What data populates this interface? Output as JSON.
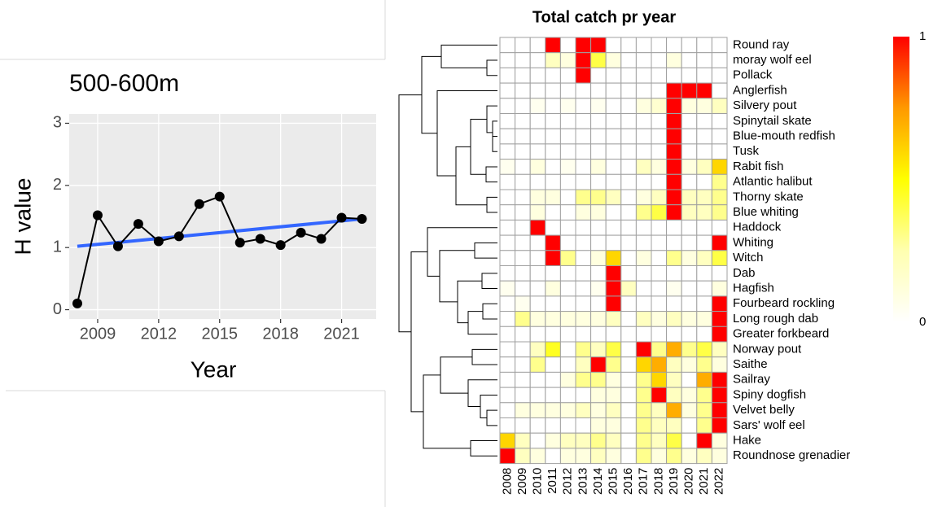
{
  "chart_data": [
    {
      "type": "line",
      "title": "500-600m",
      "x_label": "Year",
      "y_label": "H value",
      "x": [
        2008,
        2009,
        2010,
        2011,
        2012,
        2013,
        2014,
        2015,
        2016,
        2017,
        2018,
        2019,
        2020,
        2021,
        2022
      ],
      "series": [
        {
          "color": "#000000",
          "values": [
            0.1,
            1.52,
            1.02,
            1.38,
            1.1,
            1.18,
            1.7,
            1.82,
            1.08,
            1.14,
            1.04,
            1.24,
            1.14,
            1.48,
            1.46
          ]
        }
      ],
      "trend": {
        "color": "#3366ff",
        "x": [
          2008,
          2022
        ],
        "values": [
          1.02,
          1.46
        ]
      },
      "xlim": [
        2007.6,
        2022.7
      ],
      "ylim": [
        -0.15,
        3.15
      ],
      "xticks": [
        2009,
        2012,
        2015,
        2018,
        2021
      ],
      "yticks": [
        0,
        1,
        2,
        3
      ],
      "grid": true,
      "background": "#ebebeb"
    },
    {
      "type": "heatmap",
      "title": "Total catch pr year",
      "x": [
        2008,
        2009,
        2010,
        2011,
        2012,
        2013,
        2014,
        2015,
        2016,
        2017,
        2018,
        2019,
        2020,
        2021,
        2022
      ],
      "y": [
        "Round ray",
        "moray wolf eel",
        "Pollack",
        "Anglerfish",
        "Silvery pout",
        "Spinytail skate",
        "Blue-mouth redfish",
        "Tusk",
        "Rabit fish",
        "Atlantic halibut",
        "Thorny skate",
        "Blue whiting",
        "Haddock",
        "Whiting",
        "Witch",
        "Dab",
        "Hagfish",
        "Fourbeard rockling",
        "Long rough dab",
        "Greater forkbeard",
        "Norway pout",
        "Saithe",
        "Sailray",
        "Spiny dogfish",
        "Velvet belly",
        "Sars' wolf eel",
        "Hake",
        "Roundnose grenadier"
      ],
      "values": [
        [
          0,
          0,
          0,
          1,
          0,
          1,
          1,
          0,
          0,
          0,
          0,
          0,
          0,
          0,
          0
        ],
        [
          0,
          0,
          0,
          0.2,
          0.1,
          1,
          0.4,
          0.1,
          0,
          0,
          0,
          0.1,
          0,
          0,
          0
        ],
        [
          0,
          0,
          0,
          0,
          0,
          1,
          0,
          0,
          0,
          0,
          0,
          0,
          0,
          0,
          0
        ],
        [
          0,
          0,
          0,
          0,
          0,
          0,
          0,
          0,
          0,
          0,
          0,
          1,
          1,
          1,
          0
        ],
        [
          0,
          0,
          0.05,
          0,
          0.05,
          0,
          0.05,
          0,
          0,
          0.1,
          0.15,
          1,
          0.1,
          0.1,
          0.2
        ],
        [
          0,
          0,
          0,
          0,
          0,
          0,
          0,
          0,
          0,
          0,
          0,
          1,
          0,
          0,
          0
        ],
        [
          0,
          0,
          0,
          0,
          0,
          0,
          0,
          0,
          0,
          0,
          0,
          1,
          0,
          0,
          0
        ],
        [
          0,
          0,
          0,
          0,
          0,
          0,
          0,
          0,
          0,
          0,
          0,
          1,
          0,
          0,
          0
        ],
        [
          0.05,
          0,
          0.1,
          0,
          0.05,
          0,
          0.1,
          0,
          0,
          0.2,
          0.1,
          1,
          0.1,
          0.2,
          0.6
        ],
        [
          0,
          0,
          0,
          0,
          0,
          0,
          0,
          0,
          0,
          0,
          0,
          1,
          0,
          0,
          0.3
        ],
        [
          0,
          0,
          0.1,
          0.1,
          0,
          0.3,
          0.3,
          0.2,
          0,
          0.1,
          0.2,
          1,
          0.2,
          0.2,
          0.3
        ],
        [
          0,
          0,
          0.1,
          0,
          0,
          0.1,
          0.1,
          0,
          0,
          0.3,
          0.4,
          1,
          0.2,
          0.2,
          0.3
        ],
        [
          0,
          0,
          1,
          0,
          0,
          0,
          0,
          0,
          0,
          0,
          0,
          0,
          0,
          0,
          0
        ],
        [
          0,
          0,
          0,
          1,
          0,
          0,
          0,
          0,
          0,
          0,
          0,
          0,
          0,
          0,
          1
        ],
        [
          0,
          0,
          0,
          1,
          0.3,
          0,
          0.1,
          0.6,
          0,
          0.1,
          0,
          0.3,
          0.1,
          0.2,
          0.4
        ],
        [
          0,
          0,
          0,
          0,
          0,
          0,
          0,
          1,
          0,
          0,
          0,
          0,
          0,
          0,
          0
        ],
        [
          0.05,
          0,
          0,
          0.1,
          0,
          0,
          0.05,
          1,
          0.2,
          0,
          0,
          0.05,
          0,
          0,
          0.1
        ],
        [
          0,
          0.05,
          0,
          0,
          0,
          0,
          0,
          1,
          0,
          0,
          0,
          0,
          0,
          0,
          1
        ],
        [
          0,
          0.3,
          0.1,
          0.1,
          0.1,
          0.1,
          0.1,
          0.2,
          0,
          0.2,
          0.1,
          0.2,
          0.1,
          0.1,
          1
        ],
        [
          0,
          0,
          0,
          0,
          0,
          0,
          0,
          0,
          0,
          0,
          0,
          0,
          0,
          0,
          1
        ],
        [
          0,
          0,
          0.2,
          0.45,
          0,
          0.3,
          0.2,
          0.4,
          0,
          1,
          0.3,
          0.7,
          0.3,
          0.4,
          0.2
        ],
        [
          0,
          0,
          0.3,
          0,
          0,
          0.2,
          1,
          0.3,
          0,
          0.6,
          0.7,
          0.2,
          0.1,
          0.3,
          0.1
        ],
        [
          0,
          0,
          0,
          0,
          0.1,
          0.3,
          0.3,
          0.1,
          0,
          0.3,
          0.6,
          0.2,
          0,
          0.7,
          1
        ],
        [
          0,
          0,
          0,
          0,
          0,
          0,
          0.1,
          0.1,
          0,
          0.3,
          1,
          0.2,
          0.1,
          0.3,
          1
        ],
        [
          0,
          0.1,
          0.1,
          0.1,
          0.1,
          0.2,
          0.1,
          0.2,
          0,
          0.3,
          0.2,
          0.7,
          0.1,
          0.3,
          1
        ],
        [
          0,
          0,
          0,
          0,
          0,
          0,
          0.1,
          0.1,
          0,
          0.3,
          0.2,
          0.2,
          0,
          0.3,
          1
        ],
        [
          0.6,
          0.2,
          0,
          0.1,
          0.2,
          0.2,
          0.3,
          0.2,
          0,
          0.3,
          0.2,
          0.4,
          0,
          1,
          0.1
        ],
        [
          1,
          0.2,
          0.1,
          0,
          0.1,
          0.1,
          0.2,
          0.1,
          0,
          0.3,
          0.1,
          0.3,
          0.1,
          0.2,
          0.1
        ]
      ],
      "clim": [
        0,
        1
      ],
      "cticks": [
        1,
        0
      ],
      "colors": [
        "#ffffff",
        "#ffffb0",
        "#ffff00",
        "#ff9900",
        "#ff0000"
      ]
    }
  ]
}
